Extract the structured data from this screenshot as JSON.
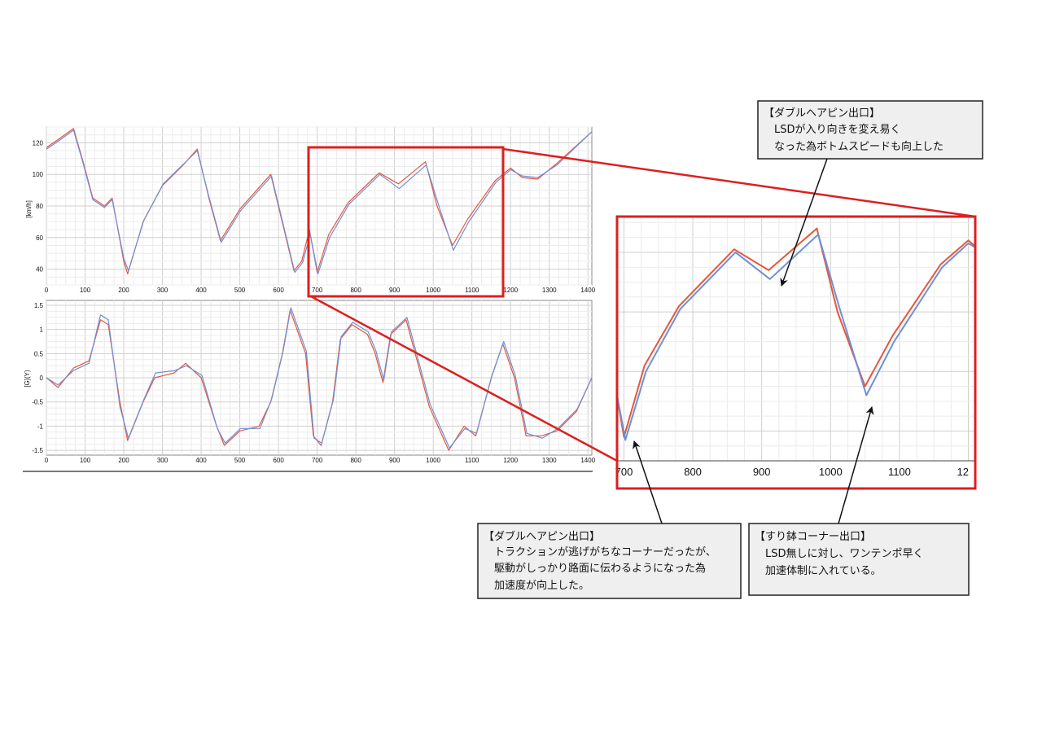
{
  "chart_data": [
    {
      "type": "line",
      "ylabel": "[km/h]",
      "xlim": [
        0,
        1410
      ],
      "ylim": [
        30,
        130
      ],
      "xticks": [
        "0",
        "100",
        "200",
        "300",
        "400",
        "500",
        "600",
        "700",
        "800",
        "900",
        "1000",
        "1100",
        "1200",
        "1300",
        "1400"
      ],
      "yticks": [
        "40",
        "60",
        "80",
        "100",
        "120"
      ],
      "grid": true,
      "series": [
        {
          "color": "#e8553a",
          "points": [
            [
              0,
              117
            ],
            [
              30,
              122
            ],
            [
              70,
              129
            ],
            [
              95,
              108
            ],
            [
              120,
              85
            ],
            [
              150,
              80
            ],
            [
              170,
              85
            ],
            [
              200,
              45
            ],
            [
              210,
              37
            ],
            [
              250,
              70
            ],
            [
              300,
              93
            ],
            [
              350,
              105
            ],
            [
              390,
              116
            ],
            [
              420,
              85
            ],
            [
              450,
              58
            ],
            [
              500,
              78
            ],
            [
              580,
              100
            ],
            [
              640,
              39
            ],
            [
              660,
              45
            ],
            [
              680,
              65
            ],
            [
              700,
              38
            ],
            [
              730,
              62
            ],
            [
              780,
              82
            ],
            [
              860,
              101
            ],
            [
              910,
              94
            ],
            [
              980,
              108
            ],
            [
              1010,
              80
            ],
            [
              1050,
              55
            ],
            [
              1090,
              72
            ],
            [
              1160,
              96
            ],
            [
              1200,
              104
            ],
            [
              1230,
              98
            ],
            [
              1270,
              97
            ],
            [
              1320,
              107
            ],
            [
              1410,
              127
            ]
          ]
        },
        {
          "color": "#6f8fd6",
          "points": [
            [
              0,
              116
            ],
            [
              30,
              121
            ],
            [
              70,
              128
            ],
            [
              95,
              107
            ],
            [
              120,
              84
            ],
            [
              150,
              79
            ],
            [
              170,
              84
            ],
            [
              200,
              47
            ],
            [
              212,
              39
            ],
            [
              252,
              71
            ],
            [
              302,
              94
            ],
            [
              352,
              106
            ],
            [
              390,
              115
            ],
            [
              420,
              86
            ],
            [
              452,
              57
            ],
            [
              502,
              77
            ],
            [
              582,
              99
            ],
            [
              642,
              38
            ],
            [
              662,
              44
            ],
            [
              682,
              62
            ],
            [
              702,
              37
            ],
            [
              732,
              60
            ],
            [
              782,
              81
            ],
            [
              862,
              100
            ],
            [
              912,
              91
            ],
            [
              982,
              106
            ],
            [
              1012,
              82
            ],
            [
              1052,
              52
            ],
            [
              1092,
              70
            ],
            [
              1162,
              95
            ],
            [
              1200,
              103
            ],
            [
              1230,
              99
            ],
            [
              1270,
              98
            ],
            [
              1320,
              106
            ],
            [
              1410,
              127
            ]
          ]
        }
      ]
    },
    {
      "type": "line",
      "ylabel": "[G](Y)",
      "xlim": [
        0,
        1410
      ],
      "ylim": [
        -1.6,
        1.6
      ],
      "xticks": [
        "0",
        "100",
        "200",
        "300",
        "400",
        "500",
        "600",
        "700",
        "800",
        "900",
        "1000",
        "1100",
        "1200",
        "1300",
        "1400"
      ],
      "yticks": [
        "1.5",
        "1",
        "0.5",
        "0",
        "-0.5",
        "-1",
        "-1.5"
      ],
      "grid": true,
      "series": [
        {
          "color": "#e8553a",
          "points": [
            [
              0,
              0
            ],
            [
              30,
              -0.2
            ],
            [
              70,
              0.2
            ],
            [
              110,
              0.35
            ],
            [
              140,
              1.2
            ],
            [
              160,
              1.1
            ],
            [
              190,
              -0.5
            ],
            [
              210,
              -1.3
            ],
            [
              250,
              -0.5
            ],
            [
              280,
              0
            ],
            [
              330,
              0.1
            ],
            [
              360,
              0.3
            ],
            [
              400,
              0
            ],
            [
              440,
              -1.0
            ],
            [
              460,
              -1.4
            ],
            [
              500,
              -1.1
            ],
            [
              550,
              -1.0
            ],
            [
              580,
              -0.5
            ],
            [
              610,
              0.5
            ],
            [
              630,
              1.4
            ],
            [
              670,
              0.5
            ],
            [
              690,
              -1.2
            ],
            [
              710,
              -1.4
            ],
            [
              740,
              -0.5
            ],
            [
              760,
              0.8
            ],
            [
              790,
              1.1
            ],
            [
              830,
              0.9
            ],
            [
              850,
              0.5
            ],
            [
              870,
              -0.1
            ],
            [
              890,
              0.9
            ],
            [
              930,
              1.2
            ],
            [
              960,
              0.3
            ],
            [
              990,
              -0.6
            ],
            [
              1040,
              -1.5
            ],
            [
              1080,
              -1.0
            ],
            [
              1110,
              -1.2
            ],
            [
              1150,
              0
            ],
            [
              1180,
              0.7
            ],
            [
              1210,
              0
            ],
            [
              1240,
              -1.2
            ],
            [
              1280,
              -1.2
            ],
            [
              1320,
              -1.1
            ],
            [
              1370,
              -0.7
            ],
            [
              1410,
              0
            ]
          ]
        },
        {
          "color": "#6f8fd6",
          "points": [
            [
              0,
              0
            ],
            [
              30,
              -0.15
            ],
            [
              70,
              0.15
            ],
            [
              110,
              0.3
            ],
            [
              140,
              1.3
            ],
            [
              160,
              1.2
            ],
            [
              190,
              -0.6
            ],
            [
              212,
              -1.25
            ],
            [
              252,
              -0.45
            ],
            [
              282,
              0.1
            ],
            [
              332,
              0.15
            ],
            [
              362,
              0.25
            ],
            [
              402,
              0.05
            ],
            [
              442,
              -1.05
            ],
            [
              462,
              -1.35
            ],
            [
              502,
              -1.05
            ],
            [
              552,
              -1.05
            ],
            [
              582,
              -0.45
            ],
            [
              612,
              0.55
            ],
            [
              632,
              1.45
            ],
            [
              672,
              0.55
            ],
            [
              692,
              -1.25
            ],
            [
              712,
              -1.35
            ],
            [
              742,
              -0.45
            ],
            [
              762,
              0.85
            ],
            [
              792,
              1.15
            ],
            [
              832,
              0.95
            ],
            [
              852,
              0.55
            ],
            [
              872,
              -0.05
            ],
            [
              892,
              0.95
            ],
            [
              932,
              1.25
            ],
            [
              962,
              0.35
            ],
            [
              992,
              -0.55
            ],
            [
              1042,
              -1.45
            ],
            [
              1082,
              -1.05
            ],
            [
              1112,
              -1.15
            ],
            [
              1152,
              0.05
            ],
            [
              1182,
              0.75
            ],
            [
              1212,
              0.05
            ],
            [
              1242,
              -1.15
            ],
            [
              1282,
              -1.25
            ],
            [
              1322,
              -1.05
            ],
            [
              1372,
              -0.65
            ],
            [
              1410,
              0
            ]
          ]
        }
      ]
    },
    {
      "type": "line",
      "xlim": [
        690,
        1210
      ],
      "ylim": [
        30,
        112
      ],
      "xticks": [
        "700",
        "800",
        "900",
        "1000",
        "1100",
        "12"
      ],
      "grid": true
    }
  ],
  "annotations": {
    "top": {
      "title": "【ダブルヘアピン出口】",
      "lines": [
        "LSDが入り向きを変え易く",
        "なった為ボトムスピードも向上した"
      ]
    },
    "bottom_left": {
      "title": "【ダブルヘアピン出口】",
      "lines": [
        "トラクションが逃げがちなコーナーだったが、",
        "駆動がしっかり路面に伝わるようになった為",
        "加速度が向上した。"
      ]
    },
    "bottom_right": {
      "title": "【すり鉢コーナー出口】",
      "lines": [
        "LSD無しに対し、ワンテンポ早く",
        "加速体制に入れている。"
      ]
    }
  },
  "colors": {
    "highlight": "#dd1f1f",
    "series_red": "#e8553a",
    "series_blue": "#6f8fd6",
    "grid": "#dedede",
    "annotation_fill": "#efefef"
  }
}
